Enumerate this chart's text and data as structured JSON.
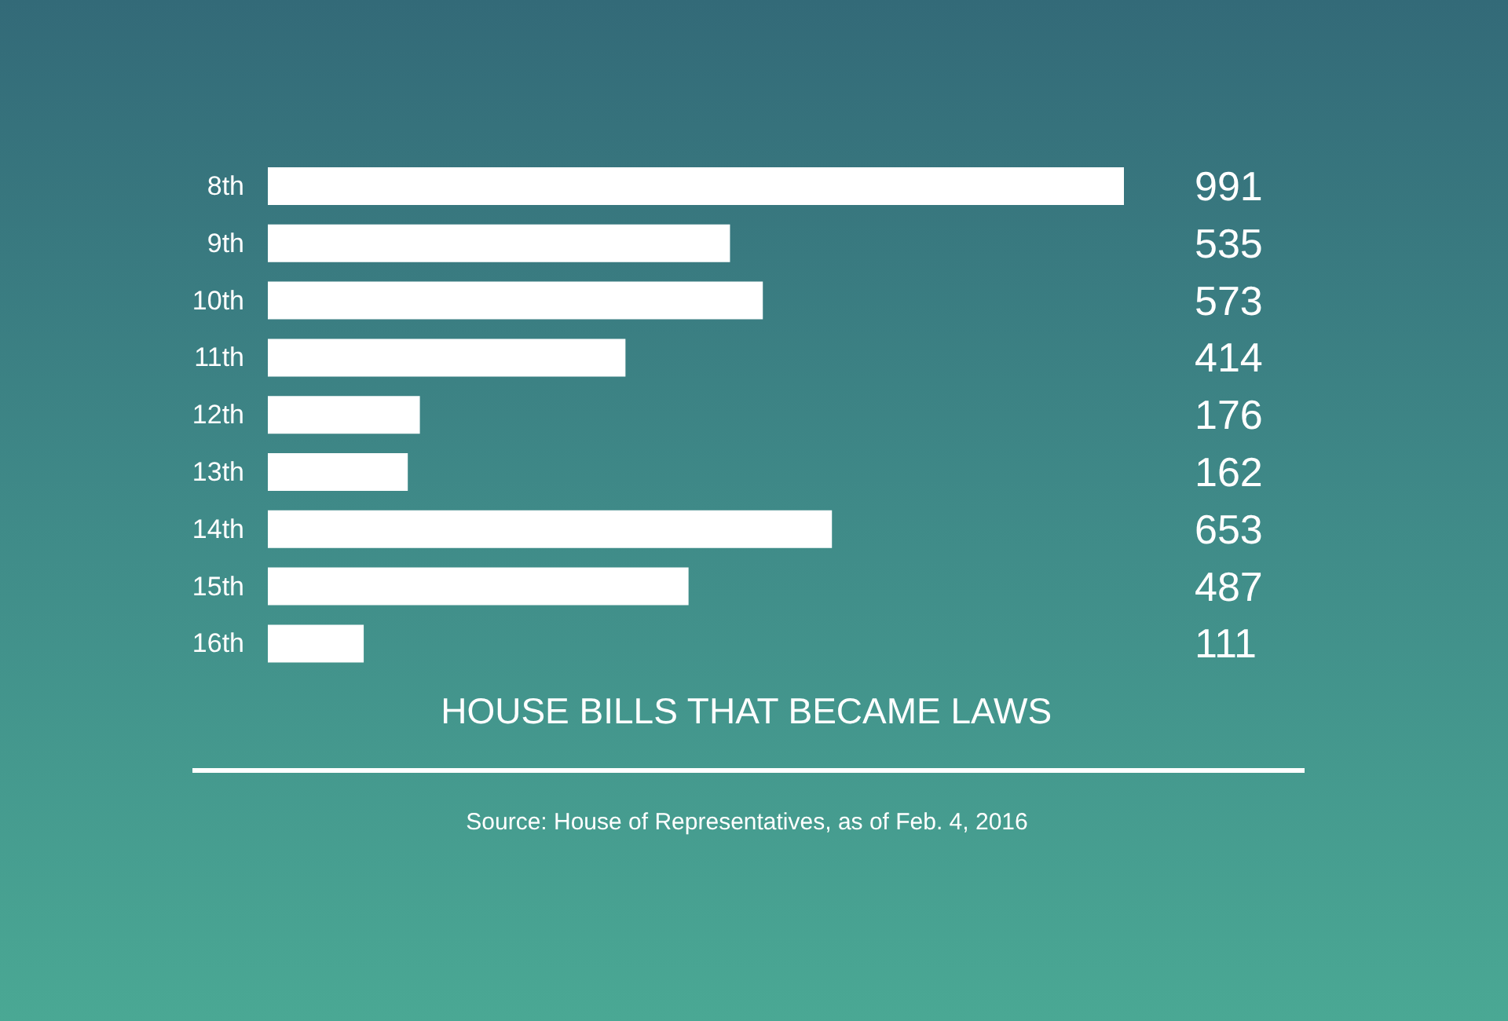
{
  "chart_data": {
    "type": "bar",
    "orientation": "horizontal",
    "title": "HOUSE BILLS THAT BECAME LAWS",
    "categories": [
      "8th",
      "9th",
      "10th",
      "11th",
      "12th",
      "13th",
      "14th",
      "15th",
      "16th"
    ],
    "values": [
      991,
      535,
      573,
      414,
      176,
      162,
      653,
      487,
      111
    ],
    "color": "#ffffff",
    "data_labels": true,
    "annotations": [
      "Source: House of Representatives, as of Feb. 4, 2016"
    ]
  }
}
